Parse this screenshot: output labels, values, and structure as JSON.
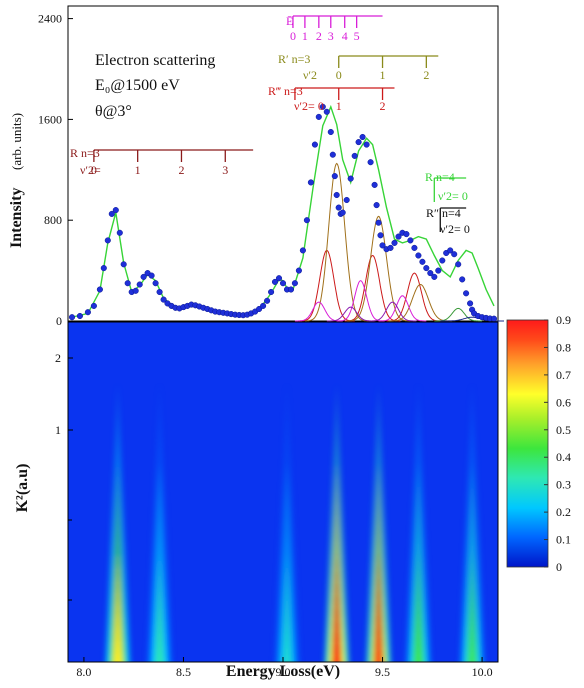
{
  "chart_data": [
    {
      "type": "scatter",
      "panel": "spectrum",
      "ylabel": "Intensity",
      "ylabel_unit": "(arb. units)",
      "xlim": [
        7.92,
        10.08
      ],
      "ylim": [
        0,
        2500
      ],
      "yticks": [
        {
          "v": 0,
          "label": "0"
        },
        {
          "v": 800,
          "label": "800"
        },
        {
          "v": 1600,
          "label": "1600"
        },
        {
          "v": 2400,
          "label": "2400"
        }
      ],
      "annotations": [
        "Electron scattering",
        "E₀@1500 eV",
        "θ@3°"
      ],
      "series": [
        {
          "kind": "points",
          "color": "#1f2fd8",
          "x": [
            7.94,
            7.98,
            8.02,
            8.05,
            8.08,
            8.1,
            8.12,
            8.14,
            8.16,
            8.18,
            8.2,
            8.22,
            8.24,
            8.26,
            8.28,
            8.3,
            8.32,
            8.34,
            8.36,
            8.38,
            8.4,
            8.42,
            8.44,
            8.46,
            8.48,
            8.5,
            8.52,
            8.54,
            8.56,
            8.58,
            8.6,
            8.62,
            8.64,
            8.66,
            8.68,
            8.7,
            8.72,
            8.74,
            8.76,
            8.78,
            8.8,
            8.82,
            8.84,
            8.86,
            8.88,
            8.9,
            8.92,
            8.94,
            8.96,
            8.98,
            9.0,
            9.02,
            9.04,
            9.06,
            9.08,
            9.1,
            9.12,
            9.14,
            9.16,
            9.18,
            9.2,
            9.22,
            9.24,
            9.25,
            9.26,
            9.27,
            9.28,
            9.29,
            9.3,
            9.32,
            9.34,
            9.36,
            9.38,
            9.4,
            9.42,
            9.44,
            9.46,
            9.47,
            9.48,
            9.49,
            9.5,
            9.52,
            9.54,
            9.56,
            9.58,
            9.6,
            9.62,
            9.64,
            9.66,
            9.68,
            9.7,
            9.72,
            9.74,
            9.76,
            9.78,
            9.8,
            9.82,
            9.84,
            9.86,
            9.88,
            9.9,
            9.92,
            9.94,
            9.95,
            9.96,
            9.98,
            10.0,
            10.02,
            10.04,
            10.06
          ],
          "y": [
            30,
            40,
            70,
            120,
            250,
            420,
            640,
            850,
            880,
            700,
            450,
            300,
            230,
            240,
            290,
            350,
            380,
            360,
            300,
            230,
            170,
            140,
            120,
            105,
            100,
            110,
            120,
            130,
            125,
            115,
            105,
            95,
            85,
            75,
            70,
            65,
            60,
            55,
            50,
            48,
            46,
            50,
            60,
            75,
            95,
            120,
            160,
            230,
            310,
            340,
            300,
            250,
            250,
            300,
            400,
            560,
            800,
            1100,
            1400,
            1620,
            1700,
            1660,
            1500,
            1320,
            1150,
            1000,
            900,
            850,
            860,
            960,
            1130,
            1310,
            1420,
            1460,
            1400,
            1260,
            1080,
            920,
            780,
            680,
            600,
            570,
            580,
            620,
            670,
            700,
            690,
            640,
            580,
            520,
            470,
            420,
            380,
            350,
            400,
            480,
            540,
            560,
            530,
            450,
            330,
            220,
            140,
            90,
            60,
            40,
            30,
            25,
            20,
            18
          ]
        },
        {
          "kind": "fit",
          "color": "#37d437",
          "x": [
            7.94,
            8.02,
            8.08,
            8.12,
            8.16,
            8.2,
            8.24,
            8.28,
            8.32,
            8.36,
            8.4,
            8.46,
            8.54,
            8.62,
            8.7,
            8.8,
            8.88,
            8.94,
            8.98,
            9.0,
            9.02,
            9.05,
            9.1,
            9.15,
            9.2,
            9.24,
            9.27,
            9.3,
            9.34,
            9.38,
            9.42,
            9.45,
            9.48,
            9.52,
            9.56,
            9.6,
            9.64,
            9.68,
            9.72,
            9.76,
            9.8,
            9.84,
            9.88,
            9.92,
            9.95,
            9.98,
            10.02,
            10.06
          ],
          "y": [
            30,
            60,
            240,
            620,
            860,
            460,
            230,
            280,
            370,
            320,
            180,
            105,
            120,
            100,
            65,
            48,
            90,
            220,
            330,
            320,
            260,
            250,
            500,
            1050,
            1550,
            1700,
            1560,
            1280,
            1100,
            1350,
            1450,
            1400,
            1200,
            900,
            650,
            620,
            640,
            670,
            650,
            520,
            400,
            350,
            480,
            560,
            540,
            420,
            250,
            120
          ]
        }
      ],
      "components": [
        {
          "color": "#cc1a1a",
          "center": 9.22,
          "height": 560,
          "width": 0.035
        },
        {
          "color": "#cc1a1a",
          "center": 9.45,
          "height": 520,
          "width": 0.035
        },
        {
          "color": "#cc1a1a",
          "center": 9.66,
          "height": 380,
          "width": 0.035
        },
        {
          "color": "#a0701a",
          "center": 9.27,
          "height": 1250,
          "width": 0.04
        },
        {
          "color": "#a0701a",
          "center": 9.48,
          "height": 830,
          "width": 0.04
        },
        {
          "color": "#a0701a",
          "center": 9.69,
          "height": 290,
          "width": 0.04
        },
        {
          "color": "#d81ed8",
          "center": 9.18,
          "height": 150,
          "width": 0.03
        },
        {
          "color": "#d81ed8",
          "center": 9.39,
          "height": 320,
          "width": 0.03
        },
        {
          "color": "#d81ed8",
          "center": 9.6,
          "height": 200,
          "width": 0.03
        },
        {
          "color": "#8a1ab0",
          "center": 9.34,
          "height": 110,
          "width": 0.03
        },
        {
          "color": "#8a1ab0",
          "center": 9.55,
          "height": 150,
          "width": 0.03
        },
        {
          "color": "#3a9a3a",
          "center": 9.88,
          "height": 100,
          "width": 0.03
        },
        {
          "color": "#1a2a8a",
          "center": 9.95,
          "height": 30,
          "width": 0.04
        }
      ],
      "progressions": [
        {
          "label": "R n=3",
          "sublabel": "ν′2= ",
          "color": "#8b1a1a",
          "x_start": 8.05,
          "x_end": 8.85,
          "ticks": [
            {
              "x": 8.05,
              "label": "0"
            },
            {
              "x": 8.27,
              "label": "1"
            },
            {
              "x": 8.49,
              "label": "2"
            },
            {
              "x": 8.71,
              "label": "3"
            }
          ]
        },
        {
          "label": "Ē",
          "sublabel": "",
          "color": "#d81ed8",
          "x_start": 9.05,
          "x_end": 9.5,
          "ticks": [
            {
              "x": 9.05,
              "label": "0"
            },
            {
              "x": 9.11,
              "label": "1"
            },
            {
              "x": 9.18,
              "label": "2"
            },
            {
              "x": 9.24,
              "label": "3"
            },
            {
              "x": 9.31,
              "label": "4"
            },
            {
              "x": 9.37,
              "label": "5"
            }
          ]
        },
        {
          "label": "R′ n=3",
          "sublabel": "ν′2",
          "color": "#8a8a1a",
          "x_start": 9.28,
          "x_end": 9.78,
          "ticks": [
            {
              "x": 9.28,
              "label": "0"
            },
            {
              "x": 9.5,
              "label": "1"
            },
            {
              "x": 9.72,
              "label": "2"
            }
          ]
        },
        {
          "label": "R‴ n=3",
          "sublabel": "ν′2= 0",
          "color": "#cc1a1a",
          "x_start": 9.06,
          "x_end": 9.56,
          "ticks": [
            {
              "x": 9.06,
              "label": ""
            },
            {
              "x": 9.28,
              "label": "1"
            },
            {
              "x": 9.5,
              "label": "2"
            }
          ]
        },
        {
          "label": "R n=4",
          "sublabel": "ν′2= 0",
          "color": "#37d437",
          "x_start": 9.76,
          "x_end": 9.92,
          "ticks": [
            {
              "x": 9.76,
              "label": ""
            }
          ]
        },
        {
          "label": "R″ n=4",
          "sublabel": "ν′2= 0",
          "color": "#111111",
          "x_start": 9.79,
          "x_end": 9.92,
          "ticks": [
            {
              "x": 9.79,
              "label": ""
            }
          ]
        }
      ]
    },
    {
      "type": "heatmap",
      "panel": "map",
      "xlabel": "Energy Loss(eV)",
      "ylabel": "K²(a.u)",
      "xlim": [
        7.92,
        10.08
      ],
      "xticks": [
        {
          "v": 8.0,
          "label": "8.0"
        },
        {
          "v": 8.5,
          "label": "8.5"
        },
        {
          "v": 9.0,
          "label": "9.0"
        },
        {
          "v": 9.5,
          "label": "9.5"
        },
        {
          "v": 10.0,
          "label": "10.0"
        }
      ],
      "yticks": [
        {
          "label": "2"
        },
        {
          "label": "1"
        }
      ],
      "colorbar": {
        "min": 0,
        "max": 0.9,
        "ticks": [
          "0",
          "0.1",
          "0.2",
          "0.3",
          "0.4",
          "0.5",
          "0.6",
          "0.7",
          "0.8",
          "0.9"
        ]
      },
      "peaks": [
        {
          "center": 8.17,
          "intensity": 0.65
        },
        {
          "center": 8.38,
          "intensity": 0.32
        },
        {
          "center": 9.02,
          "intensity": 0.28
        },
        {
          "center": 9.27,
          "intensity": 0.9
        },
        {
          "center": 9.48,
          "intensity": 0.84
        },
        {
          "center": 9.68,
          "intensity": 0.42
        },
        {
          "center": 9.95,
          "intensity": 0.4
        }
      ]
    }
  ]
}
